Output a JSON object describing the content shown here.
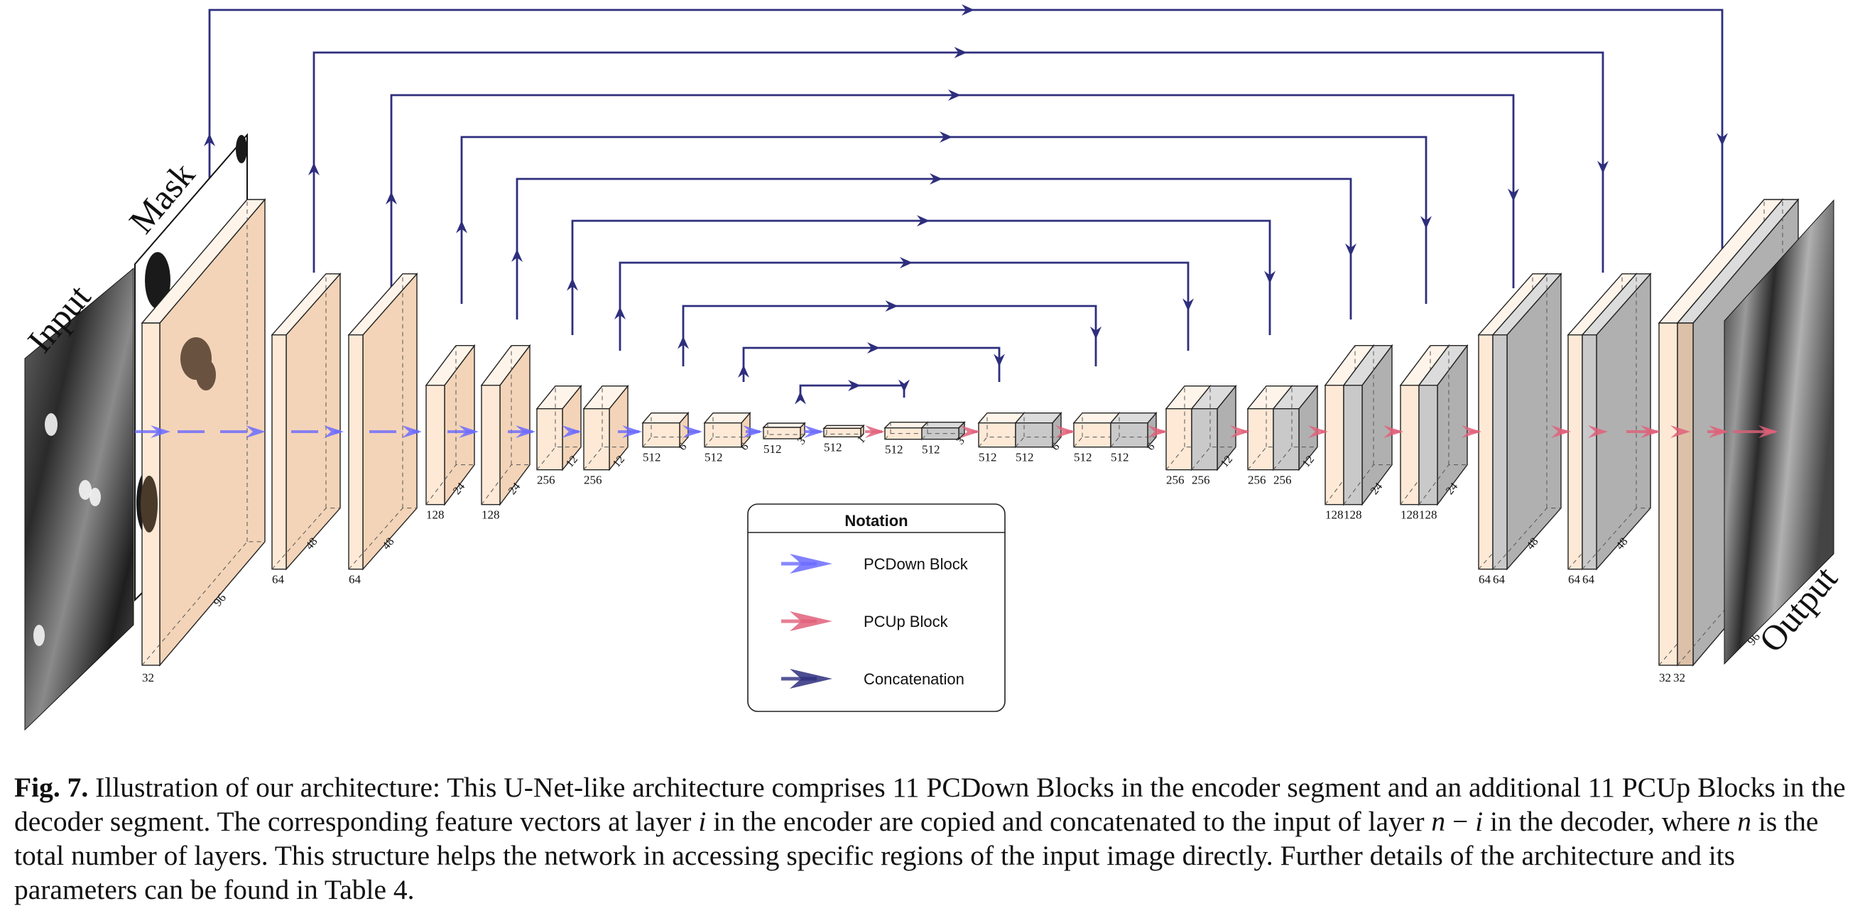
{
  "diagram": {
    "input_label": "Input",
    "mask_label": "Mask",
    "output_label": "Output",
    "colors": {
      "block_fill": "#fde9d6",
      "block_side": "#f3d4b8",
      "block_top": "#fff4ea",
      "concat_fill": "#c9c9c9",
      "concat_side": "#b0b0b0",
      "concat_top": "#dcdcdc",
      "final_fill": "#dcc0a8",
      "down_arrow": "#6b6bff",
      "up_arrow": "#e0607a",
      "concat_arrow": "#2e2e7e"
    },
    "encoder_blocks": [
      {
        "w": "32",
        "d": "96"
      },
      {
        "w": "64",
        "d": "48"
      },
      {
        "w": "64",
        "d": "48"
      },
      {
        "w": "128",
        "d": "24"
      },
      {
        "w": "128",
        "d": "24"
      },
      {
        "w": "256",
        "d": "12"
      },
      {
        "w": "256",
        "d": "12"
      },
      {
        "w": "512",
        "d": "6"
      },
      {
        "w": "512",
        "d": "6"
      },
      {
        "w": "512",
        "d": "3"
      },
      {
        "w": "512",
        "d": "1"
      }
    ],
    "decoder_blocks": [
      {
        "w1": "512",
        "w2": "512",
        "d": "3"
      },
      {
        "w1": "512",
        "w2": "512",
        "d": "6"
      },
      {
        "w1": "512",
        "w2": "512",
        "d": "6"
      },
      {
        "w1": "256",
        "w2": "256",
        "d": "12"
      },
      {
        "w1": "256",
        "w2": "256",
        "d": "12"
      },
      {
        "w1": "128",
        "w2": "128",
        "d": "24"
      },
      {
        "w1": "128",
        "w2": "128",
        "d": "24"
      },
      {
        "w1": "64",
        "w2": "64",
        "d": "48"
      },
      {
        "w1": "64",
        "w2": "64",
        "d": "48"
      },
      {
        "w1": "32",
        "w2": "32",
        "d": "96"
      }
    ],
    "legend": {
      "title": "Notation",
      "items": [
        {
          "label": "PCDown Block",
          "icon": "blue-arrow-icon"
        },
        {
          "label": "PCUp Block",
          "icon": "red-arrow-icon"
        },
        {
          "label": "Concatenation",
          "icon": "dark-arrow-icon"
        }
      ]
    }
  },
  "caption": {
    "label": "Fig. 7.",
    "part1": " Illustration of our architecture: This U-Net-like architecture comprises 11 PCDown Blocks in the encoder segment and an additional 11 PCUp Blocks in the decoder segment. The corresponding feature vectors at layer ",
    "var_i": "i",
    "part2": " in the encoder are copied and concatenated to the input of layer ",
    "var_n": "n",
    "part3": " − ",
    "var_i2": "i",
    "part4": " in the decoder, where ",
    "var_n2": "n",
    "part5": " is the total number of layers. This structure helps the network in accessing specific regions of the input image directly. Further details of the architecture and its parameters can be found in Table 4."
  }
}
